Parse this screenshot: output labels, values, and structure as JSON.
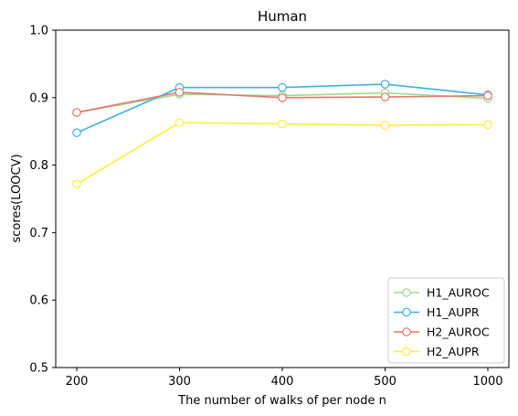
{
  "chart_data": {
    "type": "line",
    "title": "Human",
    "xlabel": "The number of walks of per node n",
    "ylabel": "scores(LOOCV)",
    "categories": [
      "200",
      "300",
      "400",
      "500",
      "1000"
    ],
    "ylim": [
      0.5,
      1.0
    ],
    "yticks": [
      "0.5",
      "0.6",
      "0.7",
      "0.8",
      "0.9",
      "1.0"
    ],
    "grid": false,
    "legend_position": "bottom-right",
    "series": [
      {
        "name": "H1_AUROC",
        "color": "#98df8a",
        "values": [
          0.878,
          0.905,
          0.903,
          0.907,
          0.899
        ]
      },
      {
        "name": "H1_AUPR",
        "color": "#3daee9",
        "values": [
          0.848,
          0.915,
          0.915,
          0.92,
          0.904
        ]
      },
      {
        "name": "H2_AUROC",
        "color": "#e8776c",
        "values": [
          0.878,
          0.908,
          0.9,
          0.901,
          0.903
        ]
      },
      {
        "name": "H2_AUPR",
        "color": "#ffee33",
        "values": [
          0.772,
          0.863,
          0.861,
          0.859,
          0.86
        ]
      }
    ]
  }
}
